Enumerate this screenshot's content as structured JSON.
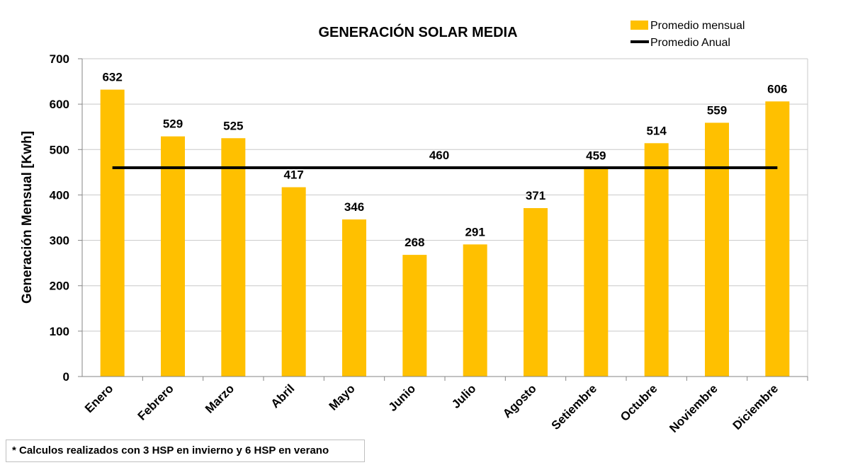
{
  "chart_data": {
    "type": "bar",
    "title": "GENERACIÓN SOLAR MEDIA",
    "xlabel": "",
    "ylabel": "Generación Mensual [Kwh]",
    "ylim": [
      0,
      700
    ],
    "yticks": [
      0,
      100,
      200,
      300,
      400,
      500,
      600,
      700
    ],
    "grid": true,
    "legend_position": "top-right",
    "categories": [
      "Enero",
      "Febrero",
      "Marzo",
      "Abril",
      "Mayo",
      "Junio",
      "Julio",
      "Agosto",
      "Setiembre",
      "Octubre",
      "Noviembre",
      "Diciembre"
    ],
    "series": [
      {
        "name": "Promedio mensual",
        "type": "bar",
        "color": "#FFC000",
        "values": [
          632,
          529,
          525,
          417,
          346,
          268,
          291,
          371,
          459,
          514,
          559,
          606
        ]
      },
      {
        "name": "Promedio Anual",
        "type": "line",
        "color": "#000000",
        "values": [
          460,
          460,
          460,
          460,
          460,
          460,
          460,
          460,
          460,
          460,
          460,
          460
        ],
        "label": "460"
      }
    ]
  },
  "footnote": "*  Calculos realizados con 3 HSP en invierno y 6 HSP en verano"
}
